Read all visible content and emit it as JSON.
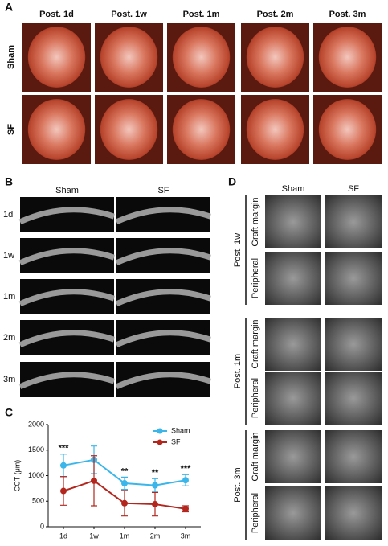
{
  "panels": {
    "A": {
      "label": "A",
      "columns": [
        "Post. 1d",
        "Post. 1w",
        "Post. 1m",
        "Post. 2m",
        "Post. 3m"
      ],
      "rows": [
        "Sham",
        "SF"
      ]
    },
    "B": {
      "label": "B",
      "columns": [
        "Sham",
        "SF"
      ],
      "rows": [
        "1d",
        "1w",
        "1m",
        "2m",
        "3m"
      ]
    },
    "C": {
      "label": "C"
    },
    "D": {
      "label": "D",
      "columns": [
        "Sham",
        "SF"
      ],
      "groups": [
        {
          "name": "Post. 1w",
          "rows": [
            "Graft margin",
            "Peripheral"
          ]
        },
        {
          "name": "Post. 1m",
          "rows": [
            "Graft margin",
            "Peripheral"
          ]
        },
        {
          "name": "Post. 3m",
          "rows": [
            "Graft margin",
            "Peripheral"
          ]
        }
      ]
    }
  },
  "chart_data": {
    "type": "line",
    "y_label": "CCT (μm)",
    "categories": [
      "1d",
      "1w",
      "1m",
      "2m",
      "3m"
    ],
    "ylim": [
      0,
      2000
    ],
    "yticks": [
      0,
      500,
      1000,
      1500,
      2000
    ],
    "series": [
      {
        "name": "Sham",
        "color": "#3bb6ea",
        "values": [
          1200,
          1310,
          850,
          810,
          910
        ],
        "errors": [
          220,
          270,
          120,
          130,
          110
        ]
      },
      {
        "name": "SF",
        "color": "#b3261e",
        "values": [
          700,
          900,
          460,
          440,
          350
        ],
        "errors": [
          280,
          490,
          250,
          230,
          60
        ]
      }
    ],
    "significance": {
      "categories": [
        "1d",
        "1m",
        "2m",
        "3m"
      ],
      "labels": [
        "***",
        "**",
        "**",
        "***"
      ],
      "color": "#e03a2a"
    },
    "legend": "upper right"
  }
}
